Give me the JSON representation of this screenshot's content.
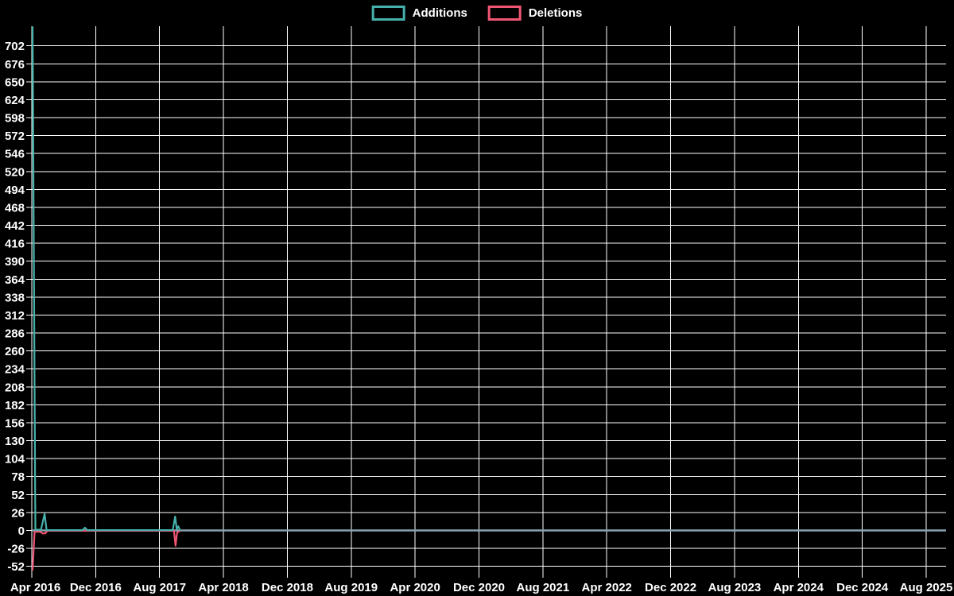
{
  "legend": {
    "items": [
      {
        "label": "Additions",
        "color": "#46b1ab"
      },
      {
        "label": "Deletions",
        "color": "#ef5673"
      }
    ]
  },
  "chart_data": {
    "type": "line",
    "title": "",
    "xlabel": "",
    "ylabel": "",
    "background_color": "#000000",
    "grid_color": "#ffffff",
    "text_color": "#ffffff",
    "zero_line_color": "#85a4b2",
    "grid": "on",
    "legend_position": "top-center",
    "x_tick_labels": [
      "Apr 2016",
      "Dec 2016",
      "Aug 2017",
      "Apr 2018",
      "Dec 2018",
      "Aug 2019",
      "Apr 2020",
      "Dec 2020",
      "Aug 2021",
      "Apr 2022",
      "Dec 2022",
      "Aug 2023",
      "Apr 2024",
      "Dec 2024",
      "Aug 2025"
    ],
    "x_range_note": "x axis spans Apr 2016 to beyond Aug 2025, ticks every 8 months",
    "y_ticks": [
      702,
      676,
      650,
      624,
      598,
      572,
      546,
      520,
      494,
      468,
      442,
      416,
      390,
      364,
      338,
      312,
      286,
      260,
      234,
      208,
      182,
      156,
      130,
      104,
      78,
      52,
      26,
      0,
      -26,
      -52
    ],
    "ylim": [
      -64,
      730
    ],
    "x_unit": "months_since_2016-04",
    "series": [
      {
        "name": "Additions",
        "color": "#46b1ab",
        "points": [
          {
            "date": "2016-04",
            "m": 0.05,
            "v": 729
          },
          {
            "date": "2016-04",
            "m": 0.4,
            "v": 1
          },
          {
            "date": "2016-05",
            "m": 1.1,
            "v": 1
          },
          {
            "date": "2016-05",
            "m": 1.55,
            "v": 24
          },
          {
            "date": "2016-06",
            "m": 1.8,
            "v": 0.5
          },
          {
            "date": "2016-10",
            "m": 6.3,
            "v": 0.5
          },
          {
            "date": "2016-10",
            "m": 6.6,
            "v": 4
          },
          {
            "date": "2016-11",
            "m": 6.9,
            "v": 0.5
          },
          {
            "date": "2017-09",
            "m": 17.6,
            "v": 0.5
          },
          {
            "date": "2017-09",
            "m": 17.9,
            "v": 20
          },
          {
            "date": "2017-10",
            "m": 18.1,
            "v": 2
          },
          {
            "date": "2017-10",
            "m": 18.3,
            "v": 6
          },
          {
            "date": "2017-10",
            "m": 18.5,
            "v": 0.5
          }
        ]
      },
      {
        "name": "Deletions",
        "color": "#ef5673",
        "points": [
          {
            "date": "2016-04",
            "m": 0.05,
            "v": -57
          },
          {
            "date": "2016-04",
            "m": 0.3,
            "v": -2
          },
          {
            "date": "2016-05",
            "m": 1.0,
            "v": -2
          },
          {
            "date": "2016-05",
            "m": 1.35,
            "v": -4.5
          },
          {
            "date": "2016-05",
            "m": 1.65,
            "v": -4
          },
          {
            "date": "2016-06",
            "m": 1.9,
            "v": -0.5
          },
          {
            "date": "2017-09",
            "m": 17.75,
            "v": -0.5
          },
          {
            "date": "2017-09",
            "m": 17.95,
            "v": -22
          },
          {
            "date": "2017-10",
            "m": 18.15,
            "v": -3
          },
          {
            "date": "2017-10",
            "m": 18.5,
            "v": -0.5
          }
        ]
      }
    ]
  }
}
